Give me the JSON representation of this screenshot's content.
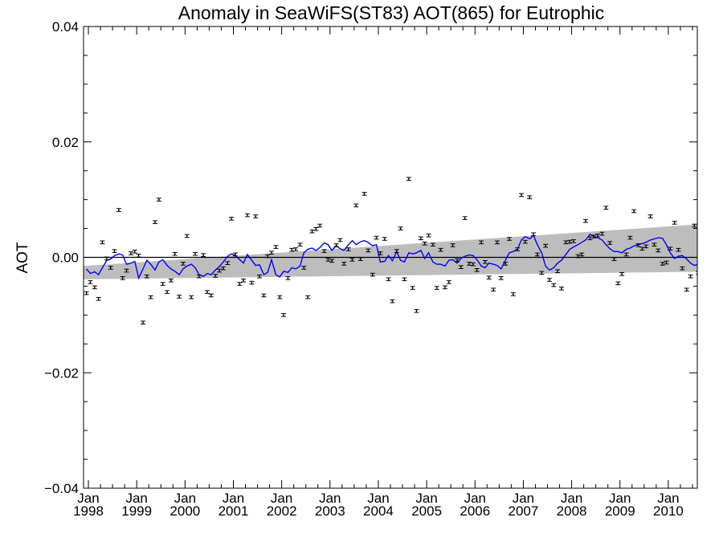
{
  "chart_data": {
    "type": "scatter",
    "title": "Anomaly in SeaWiFS(ST83) AOT(865) for Eutrophic",
    "ylabel": "AOT",
    "xlabel": "",
    "xlim": [
      1997.9,
      2010.6
    ],
    "ylim": [
      -0.04,
      0.04
    ],
    "y_ticks": [
      {
        "value": -0.04,
        "label": "−0.04"
      },
      {
        "value": -0.02,
        "label": "−0.02"
      },
      {
        "value": 0.0,
        "label": "0.00"
      },
      {
        "value": 0.02,
        "label": "0.02"
      },
      {
        "value": 0.04,
        "label": "0.04"
      }
    ],
    "x_ticks": [
      {
        "value": 1998.0,
        "label1": "Jan",
        "label2": "1998"
      },
      {
        "value": 1999.0,
        "label1": "Jan",
        "label2": "1999"
      },
      {
        "value": 2000.0,
        "label1": "Jan",
        "label2": "2000"
      },
      {
        "value": 2001.0,
        "label1": "Jan",
        "label2": "2001"
      },
      {
        "value": 2002.0,
        "label1": "Jan",
        "label2": "2002"
      },
      {
        "value": 2003.0,
        "label1": "Jan",
        "label2": "2003"
      },
      {
        "value": 2004.0,
        "label1": "Jan",
        "label2": "2004"
      },
      {
        "value": 2005.0,
        "label1": "Jan",
        "label2": "2005"
      },
      {
        "value": 2006.0,
        "label1": "Jan",
        "label2": "2006"
      },
      {
        "value": 2007.0,
        "label1": "Jan",
        "label2": "2007"
      },
      {
        "value": 2008.0,
        "label1": "Jan",
        "label2": "2008"
      },
      {
        "value": 2009.0,
        "label1": "Jan",
        "label2": "2009"
      },
      {
        "value": 2010.0,
        "label1": "Jan",
        "label2": "2010"
      }
    ],
    "points": [
      [
        1997.96,
        -0.0062
      ],
      [
        1998.04,
        -0.0043
      ],
      [
        1998.13,
        -0.0052
      ],
      [
        1998.21,
        -0.0072
      ],
      [
        1998.29,
        0.0026
      ],
      [
        1998.38,
        -0.0002
      ],
      [
        1998.46,
        -0.0018
      ],
      [
        1998.54,
        0.0011
      ],
      [
        1998.63,
        0.0082
      ],
      [
        1998.71,
        -0.0036
      ],
      [
        1998.79,
        -0.0023
      ],
      [
        1998.88,
        0.0007
      ],
      [
        1998.96,
        0.001
      ],
      [
        1999.04,
        0.0003
      ],
      [
        1999.13,
        -0.0113
      ],
      [
        1999.21,
        -0.0033
      ],
      [
        1999.29,
        -0.0069
      ],
      [
        1999.38,
        0.0061
      ],
      [
        1999.46,
        0.01
      ],
      [
        1999.54,
        -0.0046
      ],
      [
        1999.63,
        -0.006
      ],
      [
        1999.71,
        -0.004
      ],
      [
        1999.79,
        0.0006
      ],
      [
        1999.88,
        -0.0068
      ],
      [
        1999.96,
        -0.0011
      ],
      [
        2000.04,
        0.0037
      ],
      [
        2000.13,
        -0.0069
      ],
      [
        2000.21,
        0.0006
      ],
      [
        2000.29,
        -0.0033
      ],
      [
        2000.38,
        0.0004
      ],
      [
        2000.46,
        -0.006
      ],
      [
        2000.54,
        -0.0066
      ],
      [
        2000.63,
        -0.0032
      ],
      [
        2000.71,
        -0.0023
      ],
      [
        2000.79,
        -0.0019
      ],
      [
        2000.88,
        -0.001
      ],
      [
        2000.96,
        0.0067
      ],
      [
        2001.04,
        0.0005
      ],
      [
        2001.13,
        -0.0046
      ],
      [
        2001.21,
        -0.004
      ],
      [
        2001.29,
        0.0073
      ],
      [
        2001.38,
        -0.0044
      ],
      [
        2001.46,
        0.0071
      ],
      [
        2001.54,
        -0.0033
      ],
      [
        2001.63,
        -0.0066
      ],
      [
        2001.71,
        0.0002
      ],
      [
        2001.79,
        0.0008
      ],
      [
        2001.88,
        0.0018
      ],
      [
        2001.96,
        -0.0069
      ],
      [
        2002.04,
        -0.01
      ],
      [
        2002.13,
        -0.0036
      ],
      [
        2002.21,
        0.0013
      ],
      [
        2002.29,
        0.0014
      ],
      [
        2002.38,
        0.0022
      ],
      [
        2002.46,
        -0.0018
      ],
      [
        2002.54,
        -0.0069
      ],
      [
        2002.63,
        0.0045
      ],
      [
        2002.71,
        0.0049
      ],
      [
        2002.79,
        0.0055
      ],
      [
        2002.88,
        0.0011
      ],
      [
        2002.96,
        -0.0004
      ],
      [
        2003.04,
        -0.0006
      ],
      [
        2003.13,
        0.0021
      ],
      [
        2003.21,
        0.003
      ],
      [
        2003.29,
        -0.0011
      ],
      [
        2003.38,
        0.0014
      ],
      [
        2003.46,
        -0.0004
      ],
      [
        2003.54,
        0.009
      ],
      [
        2003.63,
        -0.0003
      ],
      [
        2003.71,
        0.011
      ],
      [
        2003.79,
        0.0012
      ],
      [
        2003.88,
        -0.003
      ],
      [
        2003.96,
        0.0034
      ],
      [
        2004.04,
        0.0007
      ],
      [
        2004.13,
        0.0032
      ],
      [
        2004.21,
        -0.0038
      ],
      [
        2004.29,
        -0.0076
      ],
      [
        2004.38,
        0.0011
      ],
      [
        2004.46,
        0.005
      ],
      [
        2004.54,
        -0.0038
      ],
      [
        2004.63,
        0.0136
      ],
      [
        2004.71,
        -0.0053
      ],
      [
        2004.79,
        -0.0093
      ],
      [
        2004.88,
        0.0033
      ],
      [
        2004.96,
        0.0024
      ],
      [
        2005.04,
        0.0038
      ],
      [
        2005.13,
        0.0022
      ],
      [
        2005.21,
        -0.0053
      ],
      [
        2005.29,
        0.0013
      ],
      [
        2005.38,
        -0.0052
      ],
      [
        2005.46,
        -0.0043
      ],
      [
        2005.54,
        0.0021
      ],
      [
        2005.63,
        -0.0005
      ],
      [
        2005.71,
        -0.0017
      ],
      [
        2005.79,
        0.0068
      ],
      [
        2005.88,
        -0.0011
      ],
      [
        2005.96,
        -0.0012
      ],
      [
        2006.04,
        -0.0022
      ],
      [
        2006.13,
        0.0026
      ],
      [
        2006.21,
        -0.0008
      ],
      [
        2006.29,
        -0.0035
      ],
      [
        2006.38,
        -0.0056
      ],
      [
        2006.46,
        0.0026
      ],
      [
        2006.54,
        -0.0036
      ],
      [
        2006.63,
        -0.0011
      ],
      [
        2006.71,
        0.0032
      ],
      [
        2006.79,
        -0.0064
      ],
      [
        2006.88,
        0.0014
      ],
      [
        2006.96,
        0.0108
      ],
      [
        2007.04,
        0.0027
      ],
      [
        2007.13,
        0.0104
      ],
      [
        2007.21,
        0.004
      ],
      [
        2007.29,
        0.0005
      ],
      [
        2007.38,
        -0.0027
      ],
      [
        2007.46,
        0.002
      ],
      [
        2007.54,
        -0.0039
      ],
      [
        2007.63,
        -0.0048
      ],
      [
        2007.71,
        -0.0024
      ],
      [
        2007.79,
        -0.0054
      ],
      [
        2007.88,
        0.0026
      ],
      [
        2007.96,
        0.0027
      ],
      [
        2008.04,
        0.0028
      ],
      [
        2008.13,
        0.0002
      ],
      [
        2008.21,
        0.0005
      ],
      [
        2008.29,
        0.0063
      ],
      [
        2008.38,
        0.0033
      ],
      [
        2008.46,
        0.0036
      ],
      [
        2008.54,
        0.0038
      ],
      [
        2008.63,
        0.0041
      ],
      [
        2008.71,
        0.0086
      ],
      [
        2008.79,
        0.0025
      ],
      [
        2008.88,
        -0.0003
      ],
      [
        2008.96,
        -0.0045
      ],
      [
        2009.04,
        -0.0029
      ],
      [
        2009.13,
        0.0005
      ],
      [
        2009.21,
        0.0034
      ],
      [
        2009.29,
        0.008
      ],
      [
        2009.38,
        0.0021
      ],
      [
        2009.46,
        0.0015
      ],
      [
        2009.54,
        0.0019
      ],
      [
        2009.63,
        0.0071
      ],
      [
        2009.71,
        0.0022
      ],
      [
        2009.79,
        0.0012
      ],
      [
        2009.88,
        -0.0011
      ],
      [
        2009.96,
        -0.0009
      ],
      [
        2010.04,
        0.0015
      ],
      [
        2010.13,
        0.006
      ],
      [
        2010.21,
        0.0013
      ],
      [
        2010.29,
        -0.0019
      ],
      [
        2010.38,
        -0.0056
      ],
      [
        2010.46,
        -0.0033
      ],
      [
        2010.54,
        0.0055
      ],
      [
        2010.62,
        -0.0027
      ]
    ],
    "error_bar": 0.00025,
    "smoothed_line": [
      [
        1997.96,
        -0.002
      ],
      [
        1998.04,
        -0.0028
      ],
      [
        1998.13,
        -0.0025
      ],
      [
        1998.21,
        -0.003
      ],
      [
        1998.29,
        -0.0018
      ],
      [
        1998.38,
        -0.0005
      ],
      [
        1998.46,
        -0.0003
      ],
      [
        1998.54,
        0.0003
      ],
      [
        1998.63,
        0.0006
      ],
      [
        1998.71,
        0.0004
      ],
      [
        1998.79,
        -0.0012
      ],
      [
        1998.88,
        -0.001
      ],
      [
        1998.96,
        -0.0007
      ],
      [
        1999.04,
        -0.0036
      ],
      [
        1999.13,
        -0.002
      ],
      [
        1999.21,
        -0.0005
      ],
      [
        1999.29,
        -0.0012
      ],
      [
        1999.38,
        -0.0022
      ],
      [
        1999.46,
        -0.0008
      ],
      [
        1999.54,
        -0.0004
      ],
      [
        1999.63,
        -0.0014
      ],
      [
        1999.71,
        -0.002
      ],
      [
        1999.79,
        -0.0024
      ],
      [
        1999.88,
        -0.003
      ],
      [
        1999.96,
        -0.002
      ],
      [
        2000.04,
        -0.0015
      ],
      [
        2000.13,
        -0.0012
      ],
      [
        2000.21,
        -0.0018
      ],
      [
        2000.29,
        -0.003
      ],
      [
        2000.38,
        -0.0033
      ],
      [
        2000.46,
        -0.0028
      ],
      [
        2000.54,
        -0.003
      ],
      [
        2000.63,
        -0.0022
      ],
      [
        2000.71,
        -0.0016
      ],
      [
        2000.79,
        -0.0008
      ],
      [
        2000.88,
        0.0002
      ],
      [
        2000.96,
        0.0006
      ],
      [
        2001.04,
        0.0003
      ],
      [
        2001.13,
        -0.0004
      ],
      [
        2001.21,
        -0.001
      ],
      [
        2001.29,
        0.0005
      ],
      [
        2001.38,
        -0.0005
      ],
      [
        2001.46,
        -0.0014
      ],
      [
        2001.54,
        -0.0013
      ],
      [
        2001.63,
        -0.003
      ],
      [
        2001.71,
        -0.0026
      ],
      [
        2001.79,
        -0.0004
      ],
      [
        2001.88,
        -0.003
      ],
      [
        2001.96,
        -0.0034
      ],
      [
        2002.04,
        -0.0024
      ],
      [
        2002.13,
        -0.0026
      ],
      [
        2002.21,
        -0.0018
      ],
      [
        2002.29,
        -0.002
      ],
      [
        2002.38,
        -0.0015
      ],
      [
        2002.46,
        0.0008
      ],
      [
        2002.54,
        0.0014
      ],
      [
        2002.63,
        0.0016
      ],
      [
        2002.71,
        0.0012
      ],
      [
        2002.79,
        0.0017
      ],
      [
        2002.88,
        0.0025
      ],
      [
        2002.96,
        0.0022
      ],
      [
        2003.04,
        0.0012
      ],
      [
        2003.13,
        0.002
      ],
      [
        2003.21,
        0.0015
      ],
      [
        2003.29,
        0.0012
      ],
      [
        2003.38,
        0.0022
      ],
      [
        2003.46,
        0.0029
      ],
      [
        2003.54,
        0.0022
      ],
      [
        2003.63,
        0.0027
      ],
      [
        2003.71,
        0.0029
      ],
      [
        2003.79,
        0.0026
      ],
      [
        2003.88,
        0.002
      ],
      [
        2003.96,
        0.0022
      ],
      [
        2004.04,
        -0.0008
      ],
      [
        2004.13,
        -0.0007
      ],
      [
        2004.21,
        0.0003
      ],
      [
        2004.29,
        -0.0006
      ],
      [
        2004.38,
        0.001
      ],
      [
        2004.46,
        -0.0005
      ],
      [
        2004.54,
        -0.0008
      ],
      [
        2004.63,
        0.0008
      ],
      [
        2004.71,
        0.0006
      ],
      [
        2004.79,
        0.0008
      ],
      [
        2004.88,
        0.0012
      ],
      [
        2004.96,
        -0.0002
      ],
      [
        2005.04,
        0.0008
      ],
      [
        2005.13,
        -0.0008
      ],
      [
        2005.21,
        -0.0012
      ],
      [
        2005.29,
        -0.0012
      ],
      [
        2005.38,
        -0.0015
      ],
      [
        2005.46,
        -0.0005
      ],
      [
        2005.54,
        -0.0004
      ],
      [
        2005.63,
        -0.001
      ],
      [
        2005.71,
        -0.0002
      ],
      [
        2005.79,
        0.0002
      ],
      [
        2005.88,
        0.0004
      ],
      [
        2005.96,
        0.0003
      ],
      [
        2006.04,
        -0.0004
      ],
      [
        2006.13,
        -0.0015
      ],
      [
        2006.21,
        -0.0018
      ],
      [
        2006.29,
        -0.001
      ],
      [
        2006.38,
        -0.0012
      ],
      [
        2006.46,
        -0.0014
      ],
      [
        2006.54,
        -0.002
      ],
      [
        2006.63,
        -0.0005
      ],
      [
        2006.71,
        0.0008
      ],
      [
        2006.79,
        0.001
      ],
      [
        2006.88,
        0.0014
      ],
      [
        2006.96,
        0.003
      ],
      [
        2007.04,
        0.0036
      ],
      [
        2007.13,
        0.0032
      ],
      [
        2007.21,
        0.0038
      ],
      [
        2007.29,
        0.0022
      ],
      [
        2007.38,
        0.0008
      ],
      [
        2007.46,
        -0.0015
      ],
      [
        2007.54,
        -0.0022
      ],
      [
        2007.63,
        -0.0018
      ],
      [
        2007.71,
        -0.001
      ],
      [
        2007.79,
        -0.0005
      ],
      [
        2007.88,
        0.0005
      ],
      [
        2007.96,
        0.0014
      ],
      [
        2008.04,
        0.0018
      ],
      [
        2008.13,
        0.0022
      ],
      [
        2008.21,
        0.0026
      ],
      [
        2008.29,
        0.003
      ],
      [
        2008.38,
        0.004
      ],
      [
        2008.46,
        0.0036
      ],
      [
        2008.54,
        0.0034
      ],
      [
        2008.63,
        0.003
      ],
      [
        2008.71,
        0.0022
      ],
      [
        2008.79,
        0.0015
      ],
      [
        2008.88,
        0.001
      ],
      [
        2008.96,
        0.001
      ],
      [
        2009.04,
        0.0008
      ],
      [
        2009.13,
        0.0014
      ],
      [
        2009.21,
        0.0016
      ],
      [
        2009.29,
        0.002
      ],
      [
        2009.38,
        0.0022
      ],
      [
        2009.46,
        0.0024
      ],
      [
        2009.54,
        0.0026
      ],
      [
        2009.63,
        0.003
      ],
      [
        2009.71,
        0.0032
      ],
      [
        2009.79,
        0.0034
      ],
      [
        2009.88,
        0.0033
      ],
      [
        2009.96,
        0.0022
      ],
      [
        2010.04,
        0.0008
      ],
      [
        2010.13,
        -0.0002
      ],
      [
        2010.21,
        0.0002
      ],
      [
        2010.29,
        0.0003
      ],
      [
        2010.38,
        -0.0003
      ],
      [
        2010.46,
        -0.001
      ],
      [
        2010.54,
        -0.0014
      ],
      [
        2010.62,
        -0.0012
      ]
    ],
    "band": {
      "x": [
        1997.9,
        2010.6
      ],
      "upper": [
        -0.0015,
        0.0057
      ],
      "lower": [
        -0.0038,
        -0.0025
      ]
    },
    "zero_line": 0.0,
    "colors": {
      "band": "#bdbdbd",
      "line": "#0000ff",
      "points": "#000000",
      "axes": "#000000"
    },
    "grid": false
  }
}
